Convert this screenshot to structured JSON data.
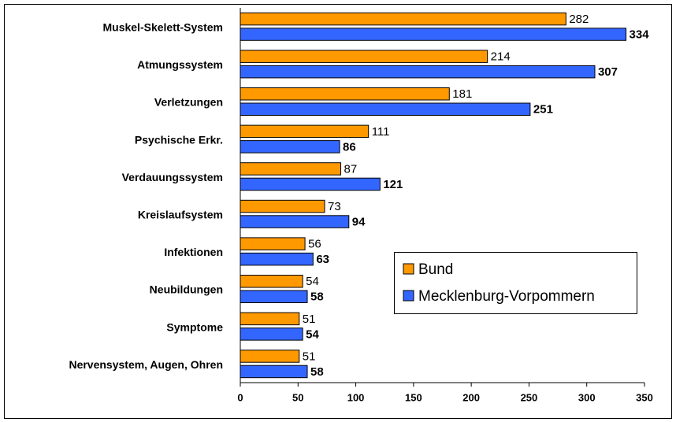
{
  "chart_data": {
    "type": "bar",
    "orientation": "horizontal",
    "categories": [
      "Muskel-Skelett-System",
      "Atmungssystem",
      "Verletzungen",
      "Psychische Erkr.",
      "Verdauungssystem",
      "Kreislaufsystem",
      "Infektionen",
      "Neubildungen",
      "Symptome",
      "Nervensystem, Augen, Ohren"
    ],
    "series": [
      {
        "name": "Bund",
        "color": "#ff9900",
        "values": [
          282,
          214,
          181,
          111,
          87,
          73,
          56,
          54,
          51,
          51
        ]
      },
      {
        "name": "Mecklenburg-Vorpommern",
        "color": "#3366ff",
        "values": [
          334,
          307,
          251,
          86,
          121,
          94,
          63,
          58,
          54,
          58
        ]
      }
    ],
    "xlim": [
      0,
      350
    ],
    "xticks": [
      0,
      50,
      100,
      150,
      200,
      250,
      300,
      350
    ],
    "grid": false,
    "legend": "center right"
  }
}
